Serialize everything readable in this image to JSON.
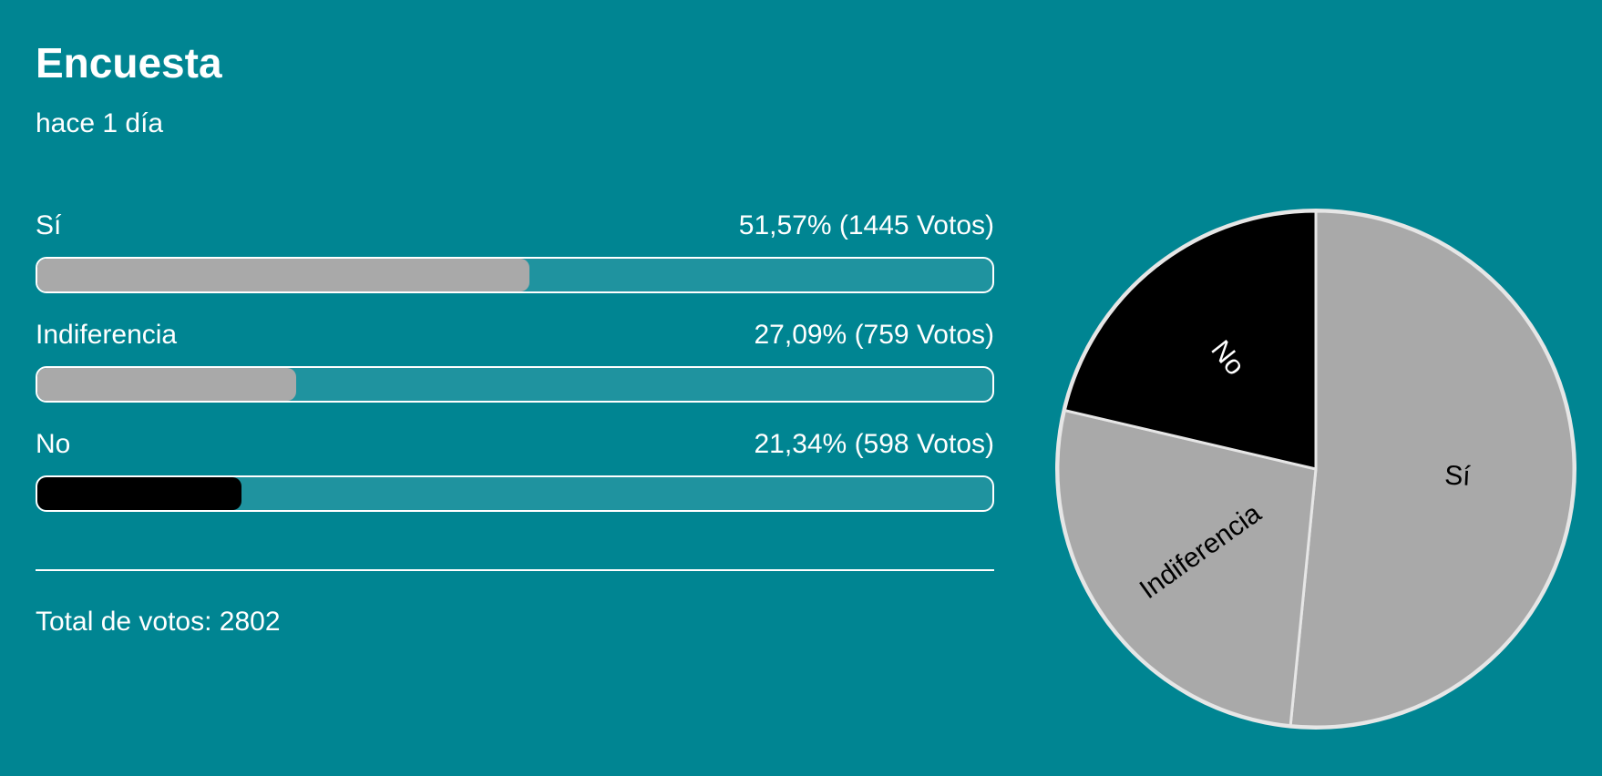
{
  "poll": {
    "title": "Encuesta",
    "time_ago": "hace 1 día",
    "total_label": "Total de votos: 2802"
  },
  "colors": {
    "background": "#008592",
    "si": "#a9a9a9",
    "indiferencia": "#a9a9a9",
    "no": "#000000",
    "slice_border": "#e6e6e6"
  },
  "chart_data": {
    "type": "pie",
    "total_votes": 2802,
    "slices": [
      {
        "label": "Sí",
        "votes": 1445,
        "percent": 51.57,
        "stats": "51,57% (1445 Votos)",
        "color": "#a9a9a9",
        "label_color": "#000000"
      },
      {
        "label": "Indiferencia",
        "votes": 759,
        "percent": 27.09,
        "stats": "27,09% (759 Votos)",
        "color": "#a9a9a9",
        "label_color": "#000000"
      },
      {
        "label": "No",
        "votes": 598,
        "percent": 21.34,
        "stats": "21,34% (598 Votos)",
        "color": "#000000",
        "label_color": "#ffffff"
      }
    ],
    "start": "12 o'clock",
    "direction": "clockwise"
  }
}
